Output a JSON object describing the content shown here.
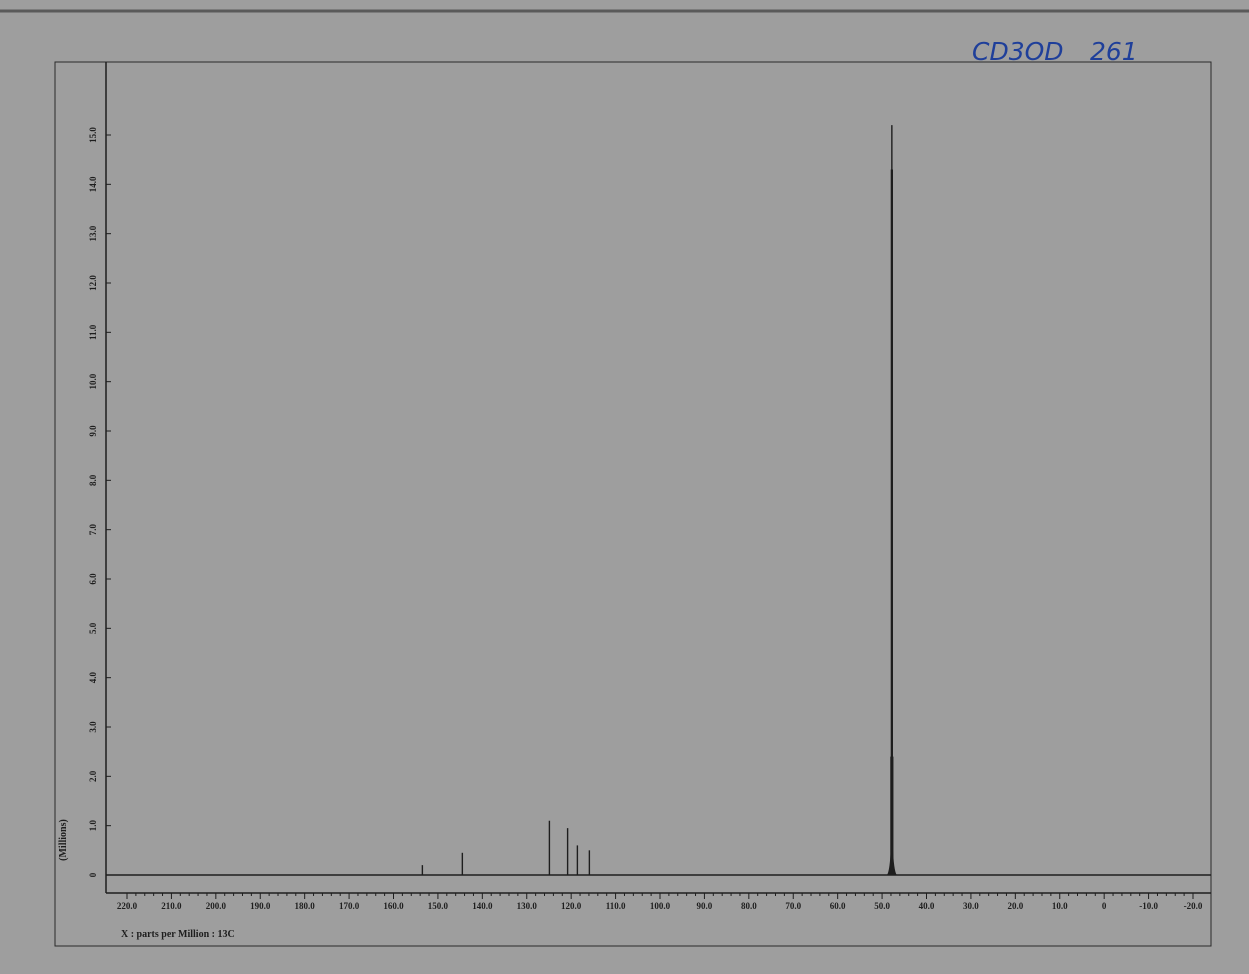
{
  "page": {
    "background": "#9e9e9e",
    "ink_color": "#1e1e1e",
    "note_color": "#1f3f9a"
  },
  "annotation": {
    "solvent": "CD3OD",
    "sample_id": "261"
  },
  "chart_data": {
    "type": "line",
    "title": "",
    "xlabel": "X : parts per Million : 13C",
    "ylabel": "(Millions)",
    "xlim": [
      222,
      -22
    ],
    "ylim": [
      -0.2,
      15.5
    ],
    "x_reversed": true,
    "grid": false,
    "x_ticks": [
      220,
      210,
      200,
      190,
      180,
      170,
      160,
      150,
      140,
      130,
      120,
      110,
      100,
      90,
      80,
      70,
      60,
      50,
      40,
      30,
      20,
      10,
      0,
      -10,
      -20
    ],
    "x_tick_labels": [
      "220.0",
      "210.0",
      "200.0",
      "190.0",
      "180.0",
      "170.0",
      "160.0",
      "150.0",
      "140.0",
      "130.0",
      "120.0",
      "110.0",
      "100.0",
      "90.0",
      "80.0",
      "70.0",
      "60.0",
      "50.0",
      "40.0",
      "30.0",
      "20.0",
      "10.0",
      "0",
      "-10.0",
      "-20.0"
    ],
    "y_ticks": [
      0,
      1,
      2,
      3,
      4,
      5,
      6,
      7,
      8,
      9,
      10,
      11,
      12,
      13,
      14,
      15
    ],
    "y_tick_labels": [
      "0",
      "1.0",
      "2.0",
      "3.0",
      "4.0",
      "5.0",
      "6.0",
      "7.0",
      "8.0",
      "9.0",
      "10.0",
      "11.0",
      "12.0",
      "13.0",
      "14.0",
      "15.0"
    ],
    "baseline": 0,
    "series": [
      {
        "peaks": [
          {
            "x": 153.5,
            "y": 0.2
          },
          {
            "x": 144.5,
            "y": 0.45
          },
          {
            "x": 124.9,
            "y": 1.1
          },
          {
            "x": 120.8,
            "y": 0.95
          },
          {
            "x": 118.6,
            "y": 0.6
          },
          {
            "x": 115.9,
            "y": 0.5
          },
          {
            "x": 48.0,
            "y": 2.4
          },
          {
            "x": 47.9,
            "y": 14.3
          },
          {
            "x": 47.8,
            "y": 15.2
          },
          {
            "x": 47.7,
            "y": 14.3
          },
          {
            "x": 47.6,
            "y": 2.4
          }
        ]
      }
    ]
  }
}
